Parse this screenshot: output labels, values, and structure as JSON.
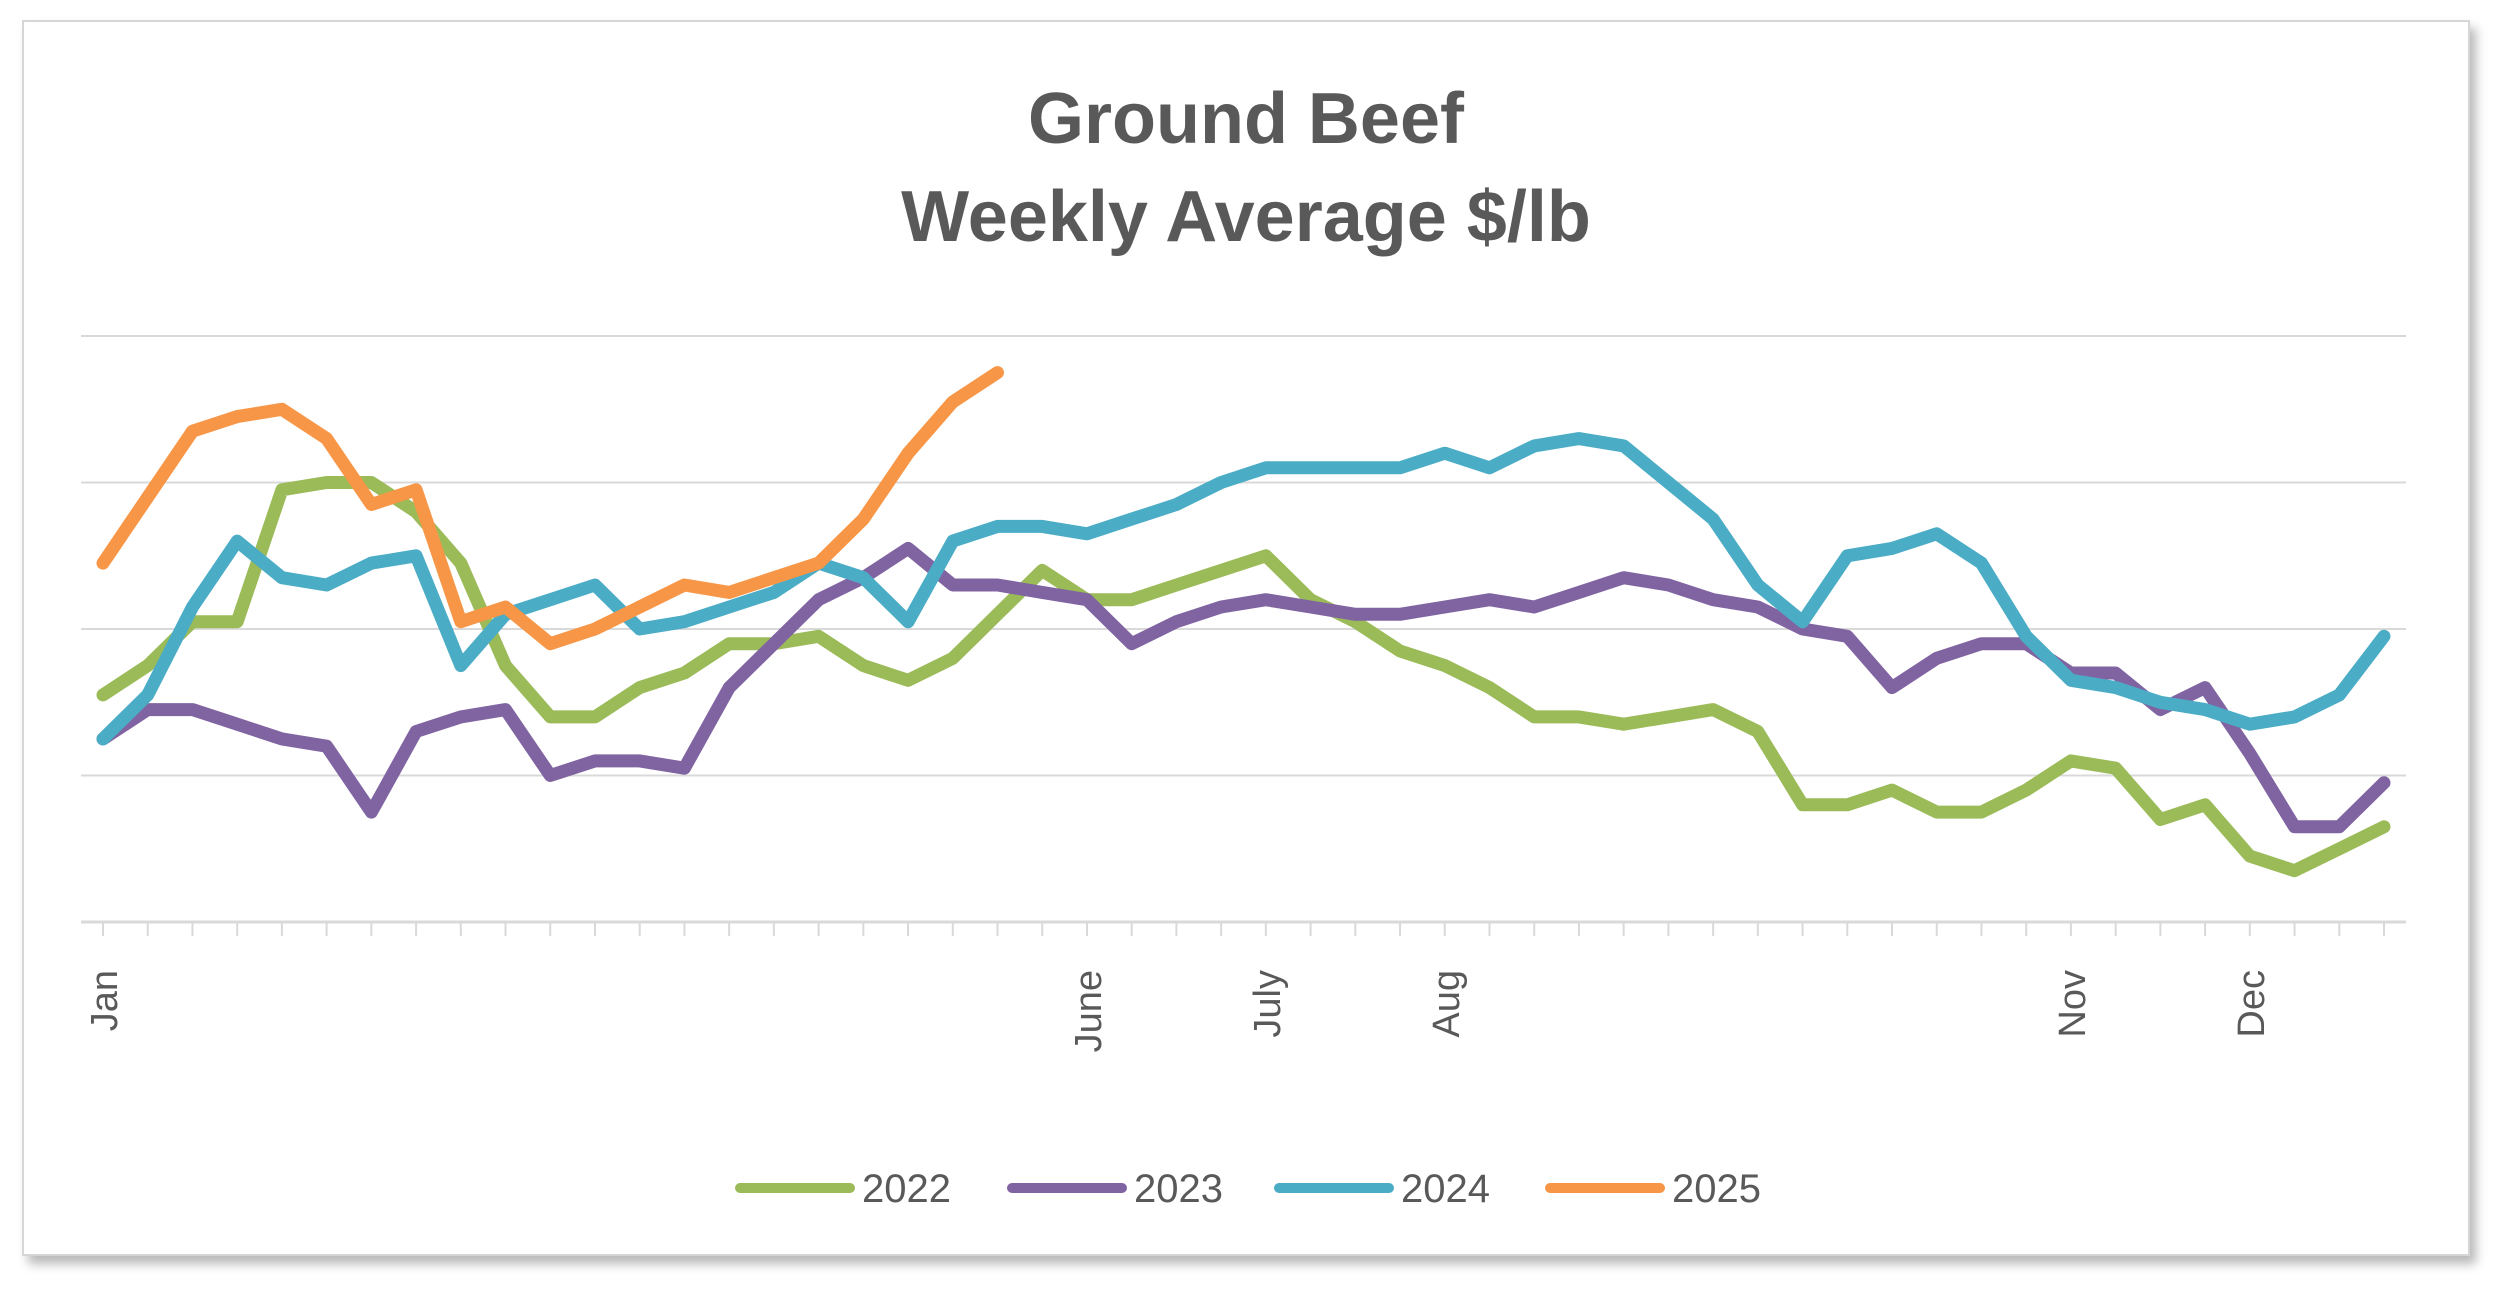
{
  "chart_data": {
    "type": "line",
    "title_lines": [
      "Ground Beef",
      "Weekly Average $/lb"
    ],
    "xlabel": "",
    "ylabel": "",
    "y_axis_labels_visible": false,
    "ylim": [
      0,
      4
    ],
    "y_gridlines": [
      1,
      2,
      3,
      4
    ],
    "x_weeks": 52,
    "month_ticks": [
      {
        "label": "Jan",
        "week": 1
      },
      {
        "label": "June",
        "week": 23
      },
      {
        "label": "July",
        "week": 27
      },
      {
        "label": "Aug",
        "week": 31
      },
      {
        "label": "Nov",
        "week": 45
      },
      {
        "label": "Dec",
        "week": 49
      }
    ],
    "legend_position": "bottom",
    "series": [
      {
        "name": "2022",
        "color": "#9bbb59",
        "values": [
          1.55,
          1.75,
          2.05,
          2.05,
          2.95,
          3.0,
          3.0,
          2.8,
          2.45,
          1.75,
          1.4,
          1.4,
          1.6,
          1.7,
          1.9,
          1.9,
          1.95,
          1.75,
          1.65,
          1.8,
          2.1,
          2.4,
          2.2,
          2.2,
          2.3,
          2.4,
          2.5,
          2.2,
          2.05,
          1.85,
          1.75,
          1.6,
          1.4,
          1.4,
          1.35,
          1.4,
          1.45,
          1.3,
          0.8,
          0.8,
          0.9,
          0.75,
          0.75,
          0.9,
          1.1,
          1.05,
          0.7,
          0.8,
          0.45,
          0.35,
          0.5,
          0.65
        ]
      },
      {
        "name": "2023",
        "color": "#8064a2",
        "values": [
          1.25,
          1.45,
          1.45,
          1.35,
          1.25,
          1.2,
          0.75,
          1.3,
          1.4,
          1.45,
          1.0,
          1.1,
          1.1,
          1.05,
          1.6,
          1.9,
          2.2,
          2.35,
          2.55,
          2.3,
          2.3,
          2.25,
          2.2,
          1.9,
          2.05,
          2.15,
          2.2,
          2.15,
          2.1,
          2.1,
          2.15,
          2.2,
          2.15,
          2.25,
          2.35,
          2.3,
          2.2,
          2.15,
          2.0,
          1.95,
          1.6,
          1.8,
          1.9,
          1.9,
          1.7,
          1.7,
          1.45,
          1.6,
          1.15,
          0.65,
          0.65,
          0.95
        ]
      },
      {
        "name": "2024",
        "color": "#4bacc6",
        "values": [
          1.25,
          1.55,
          2.15,
          2.6,
          2.35,
          2.3,
          2.45,
          2.5,
          1.75,
          2.1,
          2.2,
          2.3,
          2.0,
          2.05,
          2.15,
          2.25,
          2.45,
          2.35,
          2.05,
          2.6,
          2.7,
          2.7,
          2.65,
          2.75,
          2.85,
          3.0,
          3.1,
          3.1,
          3.1,
          3.1,
          3.2,
          3.1,
          3.25,
          3.3,
          3.25,
          3.0,
          2.75,
          2.3,
          2.05,
          2.5,
          2.55,
          2.65,
          2.45,
          1.95,
          1.65,
          1.6,
          1.5,
          1.45,
          1.35,
          1.4,
          1.55,
          1.95
        ]
      },
      {
        "name": "2025",
        "color": "#f79646",
        "values": [
          2.45,
          2.9,
          3.35,
          3.45,
          3.5,
          3.3,
          2.85,
          2.95,
          2.05,
          2.15,
          1.9,
          2.0,
          2.15,
          2.3,
          2.25,
          2.35,
          2.45,
          2.75,
          3.2,
          3.55,
          3.75
        ]
      }
    ]
  }
}
